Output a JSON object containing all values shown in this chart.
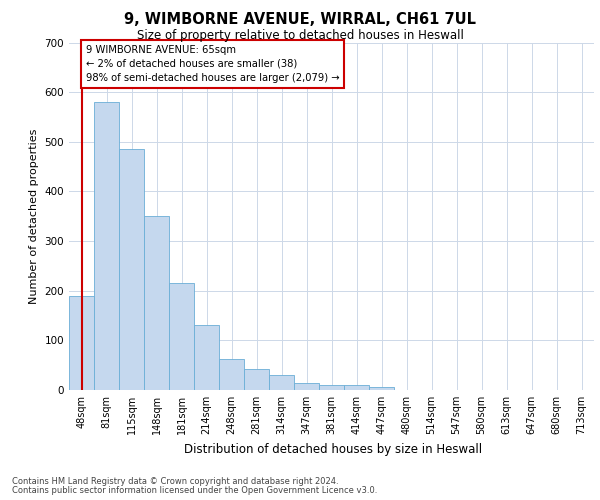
{
  "title_line1": "9, WIMBORNE AVENUE, WIRRAL, CH61 7UL",
  "title_line2": "Size of property relative to detached houses in Heswall",
  "xlabel": "Distribution of detached houses by size in Heswall",
  "ylabel": "Number of detached properties",
  "categories": [
    "48sqm",
    "81sqm",
    "115sqm",
    "148sqm",
    "181sqm",
    "214sqm",
    "248sqm",
    "281sqm",
    "314sqm",
    "347sqm",
    "381sqm",
    "414sqm",
    "447sqm",
    "480sqm",
    "514sqm",
    "547sqm",
    "580sqm",
    "613sqm",
    "647sqm",
    "680sqm",
    "713sqm"
  ],
  "bar_heights": [
    190,
    580,
    485,
    350,
    215,
    130,
    63,
    43,
    30,
    15,
    10,
    10,
    6,
    0,
    0,
    0,
    0,
    0,
    0,
    0,
    0
  ],
  "bar_color": "#c5d8ee",
  "bar_edge_color": "#6aaed6",
  "background_color": "#ffffff",
  "grid_color": "#cdd8e8",
  "annotation_text": "9 WIMBORNE AVENUE: 65sqm\n← 2% of detached houses are smaller (38)\n98% of semi-detached houses are larger (2,079) →",
  "annotation_box_color": "#ffffff",
  "annotation_box_edge_color": "#cc0000",
  "red_line_color": "#cc0000",
  "ylim": [
    0,
    700
  ],
  "yticks": [
    0,
    100,
    200,
    300,
    400,
    500,
    600,
    700
  ],
  "footnote_line1": "Contains HM Land Registry data © Crown copyright and database right 2024.",
  "footnote_line2": "Contains public sector information licensed under the Open Government Licence v3.0."
}
